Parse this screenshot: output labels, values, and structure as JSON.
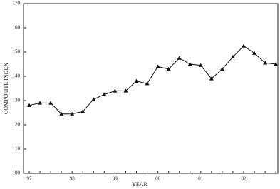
{
  "chart_data": {
    "type": "line",
    "x_label": "YEAR",
    "y_label": "COMPOSITE INDEX",
    "categories": [
      "97",
      null,
      null,
      null,
      "98",
      null,
      null,
      null,
      "99",
      null,
      null,
      null,
      "00",
      null,
      null,
      null,
      "01",
      null,
      null,
      null,
      "02",
      null,
      null,
      null
    ],
    "series": [
      {
        "color": "#111111",
        "values": [
          128,
          129,
          129,
          124.5,
          124.5,
          125.5,
          130.5,
          132.5,
          134,
          134,
          138,
          137,
          144,
          143,
          147.5,
          145,
          144.5,
          139,
          143,
          148,
          152.5,
          149.5,
          145.5,
          145
        ]
      }
    ],
    "ylim": [
      100,
      170
    ],
    "yticks": [
      100,
      110,
      120,
      130,
      140,
      150,
      160,
      170
    ],
    "grid": false
  }
}
